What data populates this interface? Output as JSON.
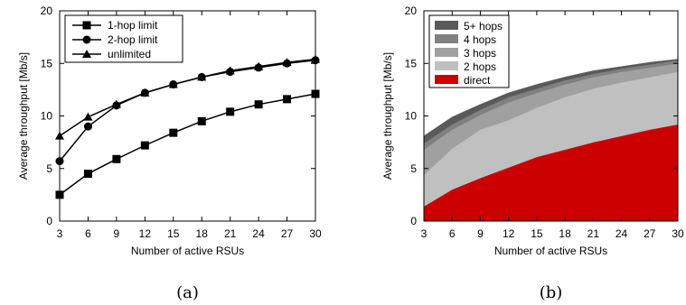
{
  "chart_data": [
    {
      "type": "line",
      "caption": "(a)",
      "xlabel": "Number of active RSUs",
      "ylabel": "Average throughput [Mb/s]",
      "xlim": [
        3,
        30
      ],
      "ylim": [
        0,
        20
      ],
      "xticks": [
        3,
        6,
        9,
        12,
        15,
        18,
        21,
        24,
        27,
        30
      ],
      "yticks": [
        0,
        5,
        10,
        15,
        20
      ],
      "legend_position": "top-left",
      "x": [
        3,
        6,
        9,
        12,
        15,
        18,
        21,
        24,
        27,
        30
      ],
      "series": [
        {
          "name": "1-hop limit",
          "marker": "square",
          "values": [
            2.5,
            4.5,
            5.9,
            7.2,
            8.4,
            9.5,
            10.4,
            11.1,
            11.6,
            12.1
          ]
        },
        {
          "name": "2-hop limit",
          "marker": "circle",
          "values": [
            5.7,
            9.0,
            11.0,
            12.2,
            13.0,
            13.7,
            14.2,
            14.6,
            15.0,
            15.3
          ]
        },
        {
          "name": "unlimited",
          "marker": "triangle",
          "values": [
            8.1,
            9.9,
            11.1,
            12.2,
            13.0,
            13.7,
            14.3,
            14.7,
            15.1,
            15.4
          ]
        }
      ]
    },
    {
      "type": "area",
      "stacked": true,
      "caption": "(b)",
      "xlabel": "Number of active RSUs",
      "ylabel": "Average throughput [Mb/s]",
      "xlim": [
        3,
        30
      ],
      "ylim": [
        0,
        20
      ],
      "xticks": [
        3,
        6,
        9,
        12,
        15,
        18,
        21,
        24,
        27,
        30
      ],
      "yticks": [
        0,
        5,
        10,
        15,
        20
      ],
      "legend_position": "top-left",
      "x": [
        3,
        6,
        9,
        12,
        15,
        18,
        21,
        24,
        27,
        30
      ],
      "series": [
        {
          "name": "direct",
          "color": "#cc0000",
          "values": [
            1.4,
            3.0,
            4.1,
            5.1,
            6.1,
            6.8,
            7.5,
            8.1,
            8.7,
            9.2
          ]
        },
        {
          "name": "2 hops",
          "color": "#c0c0c0",
          "values": [
            3.0,
            3.9,
            4.6,
            4.5,
            4.7,
            5.0,
            5.1,
            5.1,
            5.0,
            5.0
          ]
        },
        {
          "name": "3 hops",
          "color": "#a0a0a0",
          "values": [
            2.4,
            1.8,
            1.4,
            1.7,
            1.4,
            1.2,
            1.1,
            1.0,
            0.9,
            0.8
          ]
        },
        {
          "name": "4 hops",
          "color": "#808080",
          "values": [
            0.6,
            0.5,
            0.5,
            0.5,
            0.4,
            0.4,
            0.3,
            0.3,
            0.3,
            0.3
          ]
        },
        {
          "name": "5+ hops",
          "color": "#5a5a5a",
          "values": [
            0.7,
            0.7,
            0.5,
            0.4,
            0.4,
            0.3,
            0.3,
            0.2,
            0.2,
            0.1
          ]
        }
      ],
      "legend_order": [
        "5+ hops",
        "4 hops",
        "3 hops",
        "2 hops",
        "direct"
      ]
    }
  ]
}
